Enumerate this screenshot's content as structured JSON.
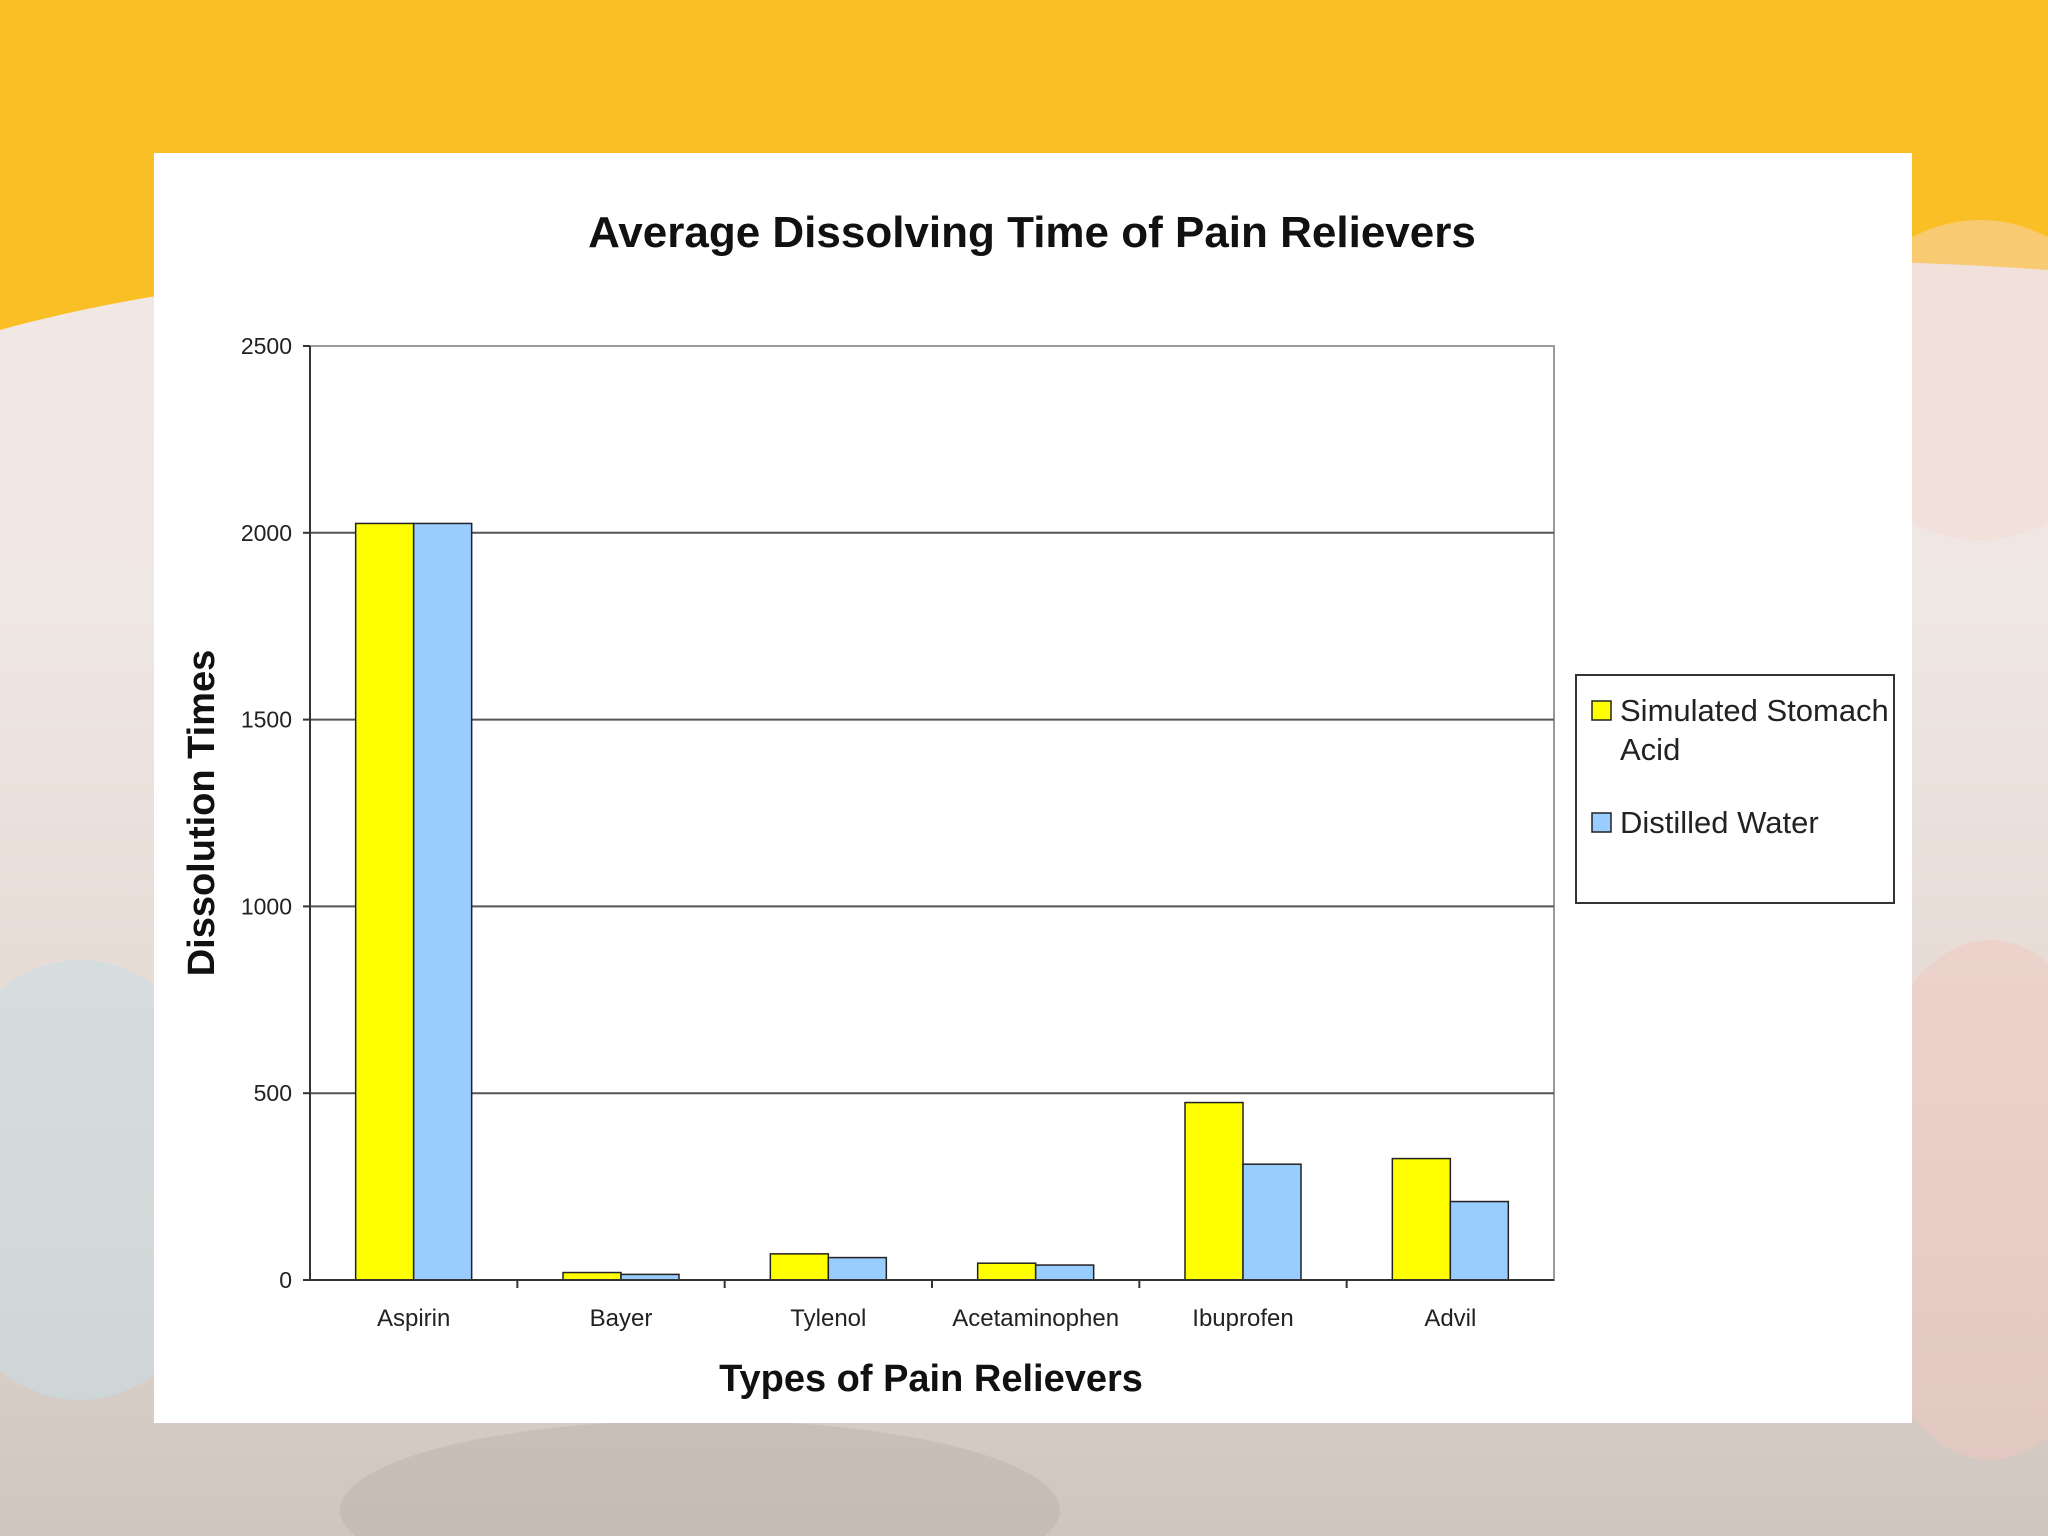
{
  "colors": {
    "banner": "#fbbf26",
    "series_1": "#ffff00",
    "series_2": "#99ccff"
  },
  "chart_data": {
    "type": "bar",
    "title": "Average Dissolving Time of Pain Relievers",
    "xlabel": "Types of Pain Relievers",
    "ylabel": "Dissolution Times",
    "categories": [
      "Aspirin",
      "Bayer",
      "Tylenol",
      "Acetaminophen",
      "Ibuprofen",
      "Advil"
    ],
    "series": [
      {
        "name": "Simulated Stomach Acid",
        "values": [
          2025,
          20,
          70,
          45,
          475,
          325
        ]
      },
      {
        "name": "Distilled Water",
        "values": [
          2025,
          15,
          60,
          40,
          310,
          210
        ]
      }
    ],
    "ylim": [
      0,
      2500
    ],
    "yticks": [
      0,
      500,
      1000,
      1500,
      2000,
      2500
    ],
    "grid": true,
    "legend": "right"
  }
}
